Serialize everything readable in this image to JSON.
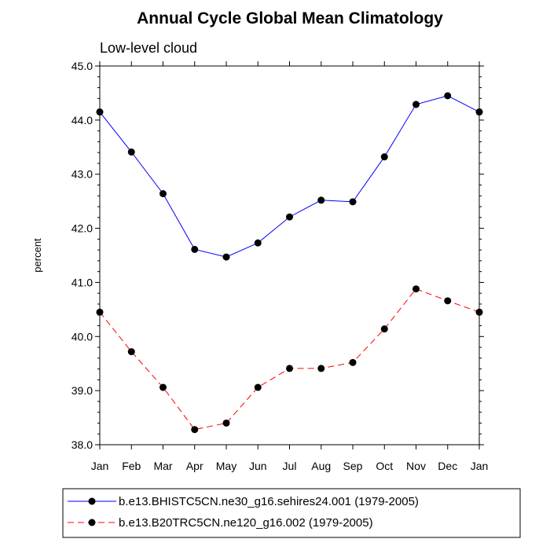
{
  "chart_data": {
    "type": "line",
    "title": "Annual Cycle Global Mean Climatology",
    "subtitle": "Low-level cloud",
    "xlabel": "",
    "ylabel": "percent",
    "categories": [
      "Jan",
      "Feb",
      "Mar",
      "Apr",
      "May",
      "Jun",
      "Jul",
      "Aug",
      "Sep",
      "Oct",
      "Nov",
      "Dec",
      "Jan"
    ],
    "ylim": [
      38.0,
      45.0
    ],
    "yticks": [
      "38.0",
      "39.0",
      "40.0",
      "41.0",
      "42.0",
      "43.0",
      "44.0",
      "45.0"
    ],
    "grid": false,
    "legend_position": "bottom",
    "series": [
      {
        "name": "b.e13.BHISTC5CN.ne30_g16.sehires24.001 (1979-2005)",
        "color": "#0000ff",
        "dash": "solid",
        "values": [
          44.15,
          43.41,
          42.64,
          41.61,
          41.47,
          41.73,
          42.21,
          42.52,
          42.49,
          43.32,
          44.29,
          44.45,
          44.15
        ]
      },
      {
        "name": "b.e13.B20TRC5CN.ne120_g16.002 (1979-2005)",
        "color": "#ff0000",
        "dash": "dashed",
        "values": [
          40.45,
          39.72,
          39.06,
          38.28,
          38.4,
          39.06,
          39.41,
          39.41,
          39.52,
          40.14,
          40.88,
          40.66,
          40.45
        ]
      }
    ]
  }
}
